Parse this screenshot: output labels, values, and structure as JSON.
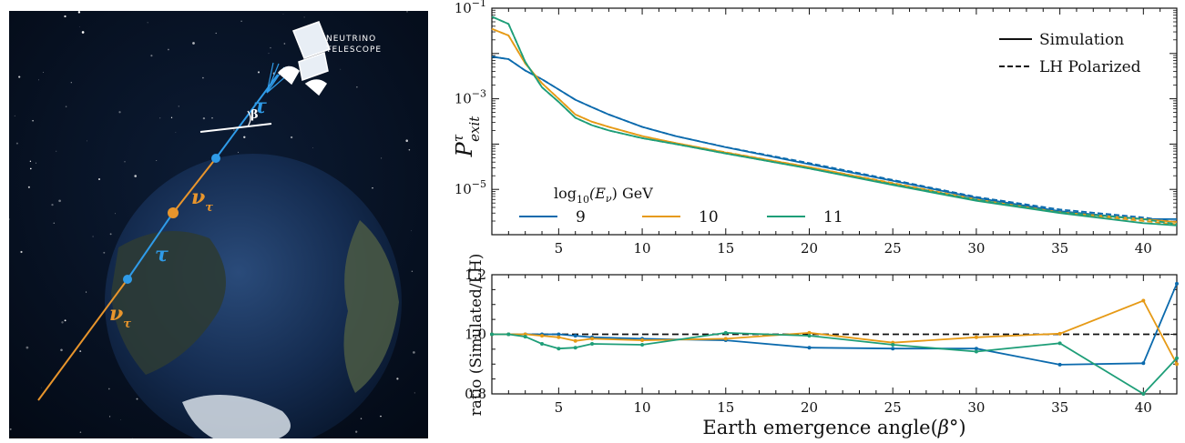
{
  "illustration": {
    "telescope_label_line1": "NEUTRINO",
    "telescope_label_line2": "TELESCOPE",
    "tau_symbol": "τ",
    "nu_symbol": "ν",
    "nu_subscript": "τ",
    "beta_symbol": "β",
    "colors": {
      "space": "#06101f",
      "tau_track": "#2f9be8",
      "nu_track": "#e8952c",
      "ocean": "#13284a",
      "land": "#3a4a3a"
    }
  },
  "chart_data": [
    {
      "type": "line",
      "panel": "top",
      "ylabel": "P^τ_exit",
      "ylabel_main": "P",
      "ylabel_sup": "τ",
      "ylabel_sub": "exit",
      "yscale": "log",
      "ylim": [
        1e-06,
        0.1
      ],
      "xlim": [
        1,
        42
      ],
      "x_ticks": [
        5,
        10,
        15,
        20,
        25,
        30,
        35,
        40
      ],
      "x_tick_labels": [
        "5",
        "10",
        "15",
        "20",
        "25",
        "30",
        "35",
        "40"
      ],
      "y_ticks": [
        0.1,
        0.001,
        1e-05
      ],
      "y_tick_labels": {
        "base": "10",
        "exps": [
          "−1",
          "−3",
          "−5"
        ]
      },
      "style_legend": [
        {
          "label": "Simulation",
          "style": "solid"
        },
        {
          "label": "LH Polarized",
          "style": "dashed"
        }
      ],
      "series_legend_title": "log10(Eν) GeV",
      "series_legend_title_parts": {
        "log": "log",
        "sub": "10",
        "rest": "(E",
        "nu": "ν",
        "end": ") GeV"
      },
      "x": [
        1,
        2,
        3,
        4,
        5,
        6,
        7,
        8,
        10,
        12,
        15,
        20,
        25,
        30,
        35,
        40,
        42
      ],
      "series": [
        {
          "name": "9",
          "color": "#0b6aad",
          "values": [
            0.0085,
            0.0075,
            0.0042,
            0.0027,
            0.0016,
            0.00095,
            0.00065,
            0.00045,
            0.00024,
            0.00015,
            8.5e-05,
            3.6e-05,
            1.55e-05,
            6.5e-06,
            3.3e-06,
            2.2e-06,
            2.2e-06
          ],
          "lh_values": [
            0.0085,
            0.0075,
            0.0042,
            0.0027,
            0.0016,
            0.00095,
            0.00065,
            0.00045,
            0.00024,
            0.00015,
            8.6e-05,
            3.8e-05,
            1.62e-05,
            6.8e-06,
            3.6e-06,
            2.4e-06,
            1.9e-06
          ]
        },
        {
          "name": "10",
          "color": "#e69a16",
          "values": [
            0.035,
            0.025,
            0.006,
            0.0022,
            0.001,
            0.00045,
            0.00031,
            0.00024,
            0.00015,
            0.000105,
            6.5e-05,
            3.1e-05,
            1.35e-05,
            5.9e-06,
            3.1e-06,
            2.2e-06,
            1.9e-06
          ],
          "lh_values": [
            0.035,
            0.025,
            0.006,
            0.0022,
            0.001,
            0.00045,
            0.00031,
            0.00024,
            0.00015,
            0.000105,
            6.6e-05,
            3.1e-05,
            1.38e-05,
            6e-06,
            3.1e-06,
            2e-06,
            1.7e-06
          ]
        },
        {
          "name": "11",
          "color": "#1e9e78",
          "values": [
            0.065,
            0.045,
            0.0065,
            0.0018,
            0.00085,
            0.00038,
            0.00026,
            0.0002,
            0.000135,
            0.0001,
            6.2e-05,
            2.9e-05,
            1.25e-05,
            5.6e-06,
            3e-06,
            1.8e-06,
            1.6e-06
          ],
          "lh_values": [
            0.065,
            0.045,
            0.0065,
            0.0018,
            0.00085,
            0.00038,
            0.00026,
            0.0002,
            0.000135,
            0.0001,
            6.2e-05,
            2.9e-05,
            1.29e-05,
            5.9e-06,
            3.1e-06,
            2.2e-06,
            1.7e-06
          ]
        }
      ]
    },
    {
      "type": "line",
      "panel": "bottom",
      "xlabel": "Earth emergence angle(β°)",
      "xlabel_text": "Earth emergence angle(",
      "xlabel_sym": "β°",
      "xlabel_end": ")",
      "ylabel": "ratio (Simulated/LH)",
      "xlim": [
        1,
        42
      ],
      "ylim": [
        0.8,
        1.2
      ],
      "x_ticks": [
        5,
        10,
        15,
        20,
        25,
        30,
        35,
        40
      ],
      "x_tick_labels": [
        "5",
        "10",
        "15",
        "20",
        "25",
        "30",
        "35",
        "40"
      ],
      "y_ticks": [
        0.8,
        1.0,
        1.2
      ],
      "y_tick_labels": [
        "0.8",
        "1.0",
        "1.2"
      ],
      "reference_line": 1.0,
      "series": [
        {
          "name": "9",
          "color": "#0b6aad",
          "x": [
            1,
            2,
            3,
            4,
            5,
            6,
            7,
            10,
            15,
            20,
            25,
            30,
            35,
            40,
            42
          ],
          "values": [
            1.0,
            1.0,
            1.0,
            1.0,
            1.0,
            0.995,
            0.99,
            0.985,
            0.98,
            0.955,
            0.952,
            0.952,
            0.898,
            0.903,
            1.17
          ]
        },
        {
          "name": "10",
          "color": "#e69a16",
          "x": [
            1,
            2,
            3,
            4,
            5,
            6,
            7,
            10,
            15,
            20,
            25,
            30,
            35,
            40,
            42
          ],
          "values": [
            1.0,
            1.0,
            1.0,
            0.995,
            0.99,
            0.978,
            0.985,
            0.98,
            0.985,
            1.005,
            0.972,
            0.99,
            1.002,
            1.113,
            0.9
          ]
        },
        {
          "name": "11",
          "color": "#1e9e78",
          "x": [
            1,
            2,
            3,
            4,
            5,
            6,
            7,
            10,
            15,
            20,
            25,
            30,
            35,
            40,
            42
          ],
          "values": [
            1.0,
            1.0,
            0.992,
            0.968,
            0.952,
            0.955,
            0.968,
            0.965,
            1.005,
            0.995,
            0.965,
            0.942,
            0.97,
            0.8,
            0.92
          ]
        }
      ]
    }
  ]
}
